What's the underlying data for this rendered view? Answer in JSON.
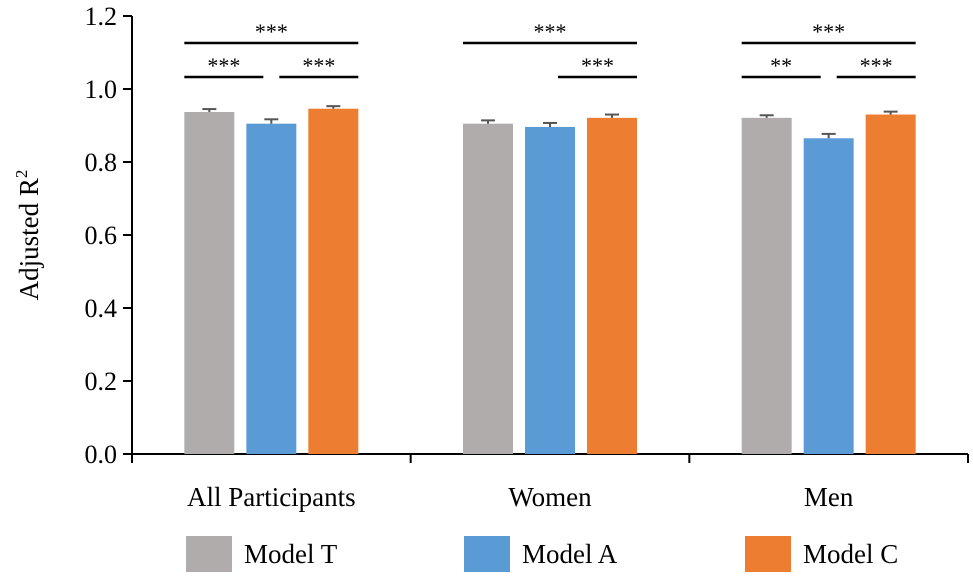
{
  "chart_data": {
    "type": "bar",
    "title": "",
    "xlabel": "",
    "ylabel": "Adjusted R",
    "ylabel_superscript": "2",
    "ylim": [
      0,
      1.2
    ],
    "yticks": [
      "0.0",
      "0.2",
      "0.4",
      "0.6",
      "0.8",
      "1.0",
      "1.2"
    ],
    "categories": [
      "All Participants",
      "Women",
      "Men"
    ],
    "series": [
      {
        "name": "Model T",
        "color": "#b0acab",
        "values": [
          0.937,
          0.905,
          0.921
        ],
        "errors": [
          0.008,
          0.009,
          0.007
        ]
      },
      {
        "name": "Model A",
        "color": "#5b9bd5",
        "values": [
          0.905,
          0.896,
          0.865
        ],
        "errors": [
          0.012,
          0.011,
          0.012
        ]
      },
      {
        "name": "Model C",
        "color": "#ed7d31",
        "values": [
          0.946,
          0.921,
          0.93
        ],
        "errors": [
          0.007,
          0.009,
          0.008
        ]
      }
    ],
    "significance": [
      {
        "category": 0,
        "from": 0,
        "to": 2,
        "label": "***",
        "level": 2
      },
      {
        "category": 0,
        "from": 0,
        "to": 1,
        "label": "***",
        "level": 1
      },
      {
        "category": 0,
        "from": 1,
        "to": 2,
        "label": "***",
        "level": 1
      },
      {
        "category": 1,
        "from": 0,
        "to": 2,
        "label": "***",
        "level": 2
      },
      {
        "category": 1,
        "from": 1,
        "to": 2,
        "label": "***",
        "level": 1
      },
      {
        "category": 2,
        "from": 0,
        "to": 2,
        "label": "***",
        "level": 2
      },
      {
        "category": 2,
        "from": 0,
        "to": 1,
        "label": "**",
        "level": 1
      },
      {
        "category": 2,
        "from": 1,
        "to": 2,
        "label": "***",
        "level": 1
      }
    ],
    "legend_position": "bottom",
    "grid": false
  }
}
